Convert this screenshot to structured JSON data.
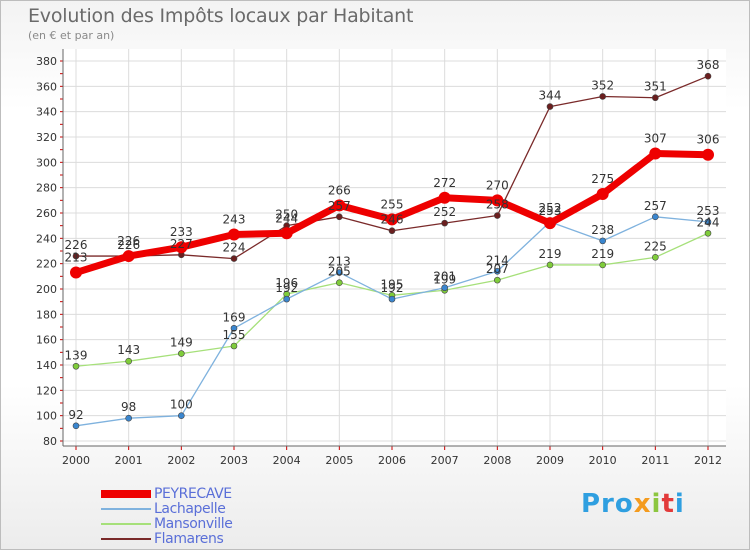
{
  "chart_data": {
    "type": "line",
    "title": "Evolution des Impôts locaux par Habitant",
    "subtitle": "(en € et par an)",
    "x": [
      "2000",
      "2001",
      "2002",
      "2003",
      "2004",
      "2005",
      "2006",
      "2007",
      "2008",
      "2009",
      "2010",
      "2011",
      "2012"
    ],
    "ylim": [
      80,
      380
    ],
    "yticks": [
      80,
      100,
      120,
      140,
      160,
      180,
      200,
      220,
      240,
      260,
      280,
      300,
      320,
      340,
      360,
      380
    ],
    "grid": true,
    "series": [
      {
        "name": "Flamarens",
        "color": "#7a2a2a",
        "marker": "#6b1f1f",
        "values": [
          226,
          226,
          227,
          224,
          250,
          257,
          246,
          252,
          258,
          344,
          352,
          351,
          368
        ],
        "labels": [
          "226",
          "226",
          "227",
          "224",
          "250",
          "257",
          "246",
          "252",
          "258",
          "344",
          "352",
          "351",
          "368"
        ]
      },
      {
        "name": "Mansonville",
        "color": "#a6e07a",
        "marker": "#7fcc3a",
        "values": [
          139,
          143,
          149,
          155,
          196,
          205,
          195,
          199,
          207,
          219,
          219,
          225,
          244
        ],
        "labels": [
          "139",
          "143",
          "149",
          "155",
          "196",
          "205",
          "195",
          "199",
          "207",
          "219",
          "219",
          "225",
          "244"
        ]
      },
      {
        "name": "Lachapelle",
        "color": "#7fb2de",
        "marker": "#3a86cf",
        "values": [
          92,
          98,
          100,
          169,
          192,
          213,
          192,
          201,
          214,
          253,
          238,
          257,
          253
        ],
        "labels": [
          "92",
          "98",
          "100",
          "169",
          "192",
          "213",
          "192",
          "201",
          "214",
          "253",
          "238",
          "257",
          "253"
        ]
      },
      {
        "name": "PEYRECAVE",
        "color": "#ee0000",
        "marker": "#ee0000",
        "values": [
          213,
          226,
          233,
          243,
          244,
          266,
          255,
          272,
          270,
          252,
          275,
          307,
          306
        ],
        "labels": [
          "213",
          "226",
          "233",
          "243",
          "244",
          "266",
          "255",
          "272",
          "270",
          "252",
          "275",
          "307",
          "306"
        ]
      }
    ],
    "legend": [
      "PEYRECAVE",
      "Lachapelle",
      "Mansonville",
      "Flamarens"
    ]
  },
  "legend_colors": [
    "#ee0000",
    "#7fb2de",
    "#a6e07a",
    "#7a2a2a"
  ],
  "logo": {
    "p1": "Pro",
    "p2": "x",
    "p3": "i",
    "p4": "t",
    "p5": "i"
  }
}
